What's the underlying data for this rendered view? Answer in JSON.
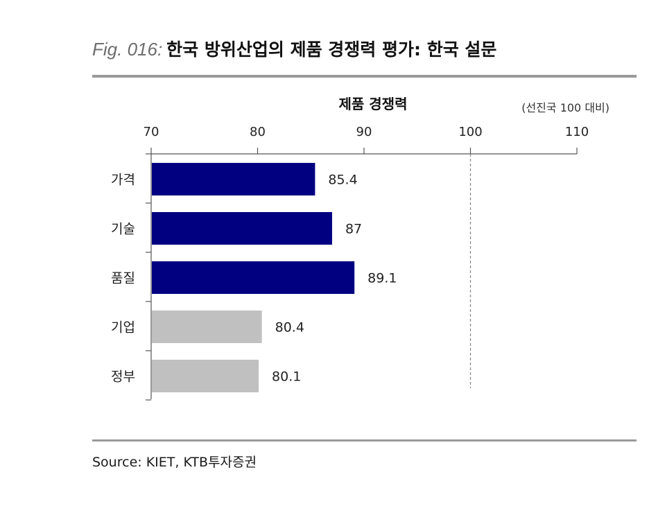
{
  "figure": {
    "label": "Fig. 016:",
    "title": "한국 방위산업의 제품 경쟁력 평가: 한국 설문",
    "source": "Source: KIET, KTB투자증권"
  },
  "chart_data": {
    "type": "bar",
    "orientation": "horizontal",
    "title": "제품 경쟁력",
    "unit_note": "(선진국 100 대비)",
    "categories": [
      "가격",
      "기술",
      "품질",
      "기업",
      "정부"
    ],
    "values": [
      85.4,
      87,
      89.1,
      80.4,
      80.1
    ],
    "value_labels": [
      "85.4",
      "87",
      "89.1",
      "80.4",
      "80.1"
    ],
    "bar_colors": [
      "#000080",
      "#000080",
      "#000080",
      "#c0c0c0",
      "#c0c0c0"
    ],
    "xlim": [
      70,
      110
    ],
    "xticks": [
      70,
      80,
      90,
      100,
      110
    ],
    "xtick_labels": [
      "70",
      "80",
      "90",
      "100",
      "110"
    ],
    "reference_line": 100,
    "reference_line_style": "dashed",
    "grid": false,
    "x_axis_position": "top"
  }
}
